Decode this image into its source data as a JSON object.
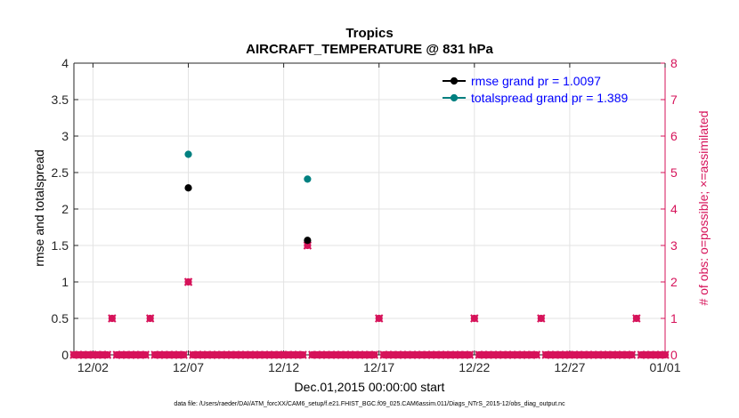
{
  "chart_data": {
    "type": "scatter",
    "title": "Tropics",
    "subtitle": "AIRCRAFT_TEMPERATURE @ 831 hPa",
    "xlabel": "Dec.01,2015 00:00:00 start",
    "ylabel_left": "rmse and totalspread",
    "ylabel_right": "# of obs: o=possible; ×=assimilated",
    "footnote": "data file: /Users/raeder/DAI/ATM_forcXX/CAM6_setup/f.e21.FHIST_BGC.f09_025.CAM6assim.011/Diags_NTrS_2015-12/obs_diag_output.nc",
    "xlim": [
      0,
      31
    ],
    "ylim_left": [
      0,
      4
    ],
    "ylim_right": [
      0,
      8
    ],
    "x_tick_values": [
      1,
      6,
      11,
      16,
      21,
      26,
      31
    ],
    "x_tick_labels": [
      "12/02",
      "12/07",
      "12/12",
      "12/17",
      "12/22",
      "12/27",
      "01/01"
    ],
    "y_left_tick_values": [
      0,
      0.5,
      1,
      1.5,
      2,
      2.5,
      3,
      3.5,
      4
    ],
    "y_left_tick_labels": [
      "0",
      "0.5",
      "1",
      "1.5",
      "2",
      "2.5",
      "3",
      "3.5",
      "4"
    ],
    "y_right_tick_values": [
      0,
      1,
      2,
      3,
      4,
      5,
      6,
      7,
      8
    ],
    "y_right_tick_labels": [
      "0",
      "1",
      "2",
      "3",
      "4",
      "5",
      "6",
      "7",
      "8"
    ],
    "grid": true,
    "legend_position": "top-right",
    "series": [
      {
        "name": "rmse grand pr = 1.0097",
        "axis": "left",
        "color": "#000000",
        "marker": "circle",
        "points": [
          [
            6.0,
            2.29
          ],
          [
            12.25,
            1.57
          ]
        ]
      },
      {
        "name": "totalspread grand pr = 1.389",
        "axis": "left",
        "color": "#008080",
        "marker": "circle",
        "points": [
          [
            6.0,
            2.75
          ],
          [
            12.25,
            2.41
          ]
        ]
      },
      {
        "name": "obs possible",
        "axis": "right",
        "color": "#d6135a",
        "marker": "o",
        "points": [
          [
            2.0,
            1
          ],
          [
            4.0,
            1
          ],
          [
            6.0,
            2
          ],
          [
            12.25,
            3
          ],
          [
            16.0,
            1
          ],
          [
            21.0,
            1
          ],
          [
            24.5,
            1
          ],
          [
            29.5,
            1
          ]
        ]
      },
      {
        "name": "obs assimilated",
        "axis": "right",
        "color": "#d6135a",
        "marker": "x",
        "points": [
          [
            2.0,
            1
          ],
          [
            4.0,
            1
          ],
          [
            6.0,
            2
          ],
          [
            12.25,
            3
          ],
          [
            16.0,
            1
          ],
          [
            21.0,
            1
          ],
          [
            24.5,
            1
          ],
          [
            29.5,
            1
          ]
        ]
      }
    ],
    "zero_count_interval": 0.25
  }
}
